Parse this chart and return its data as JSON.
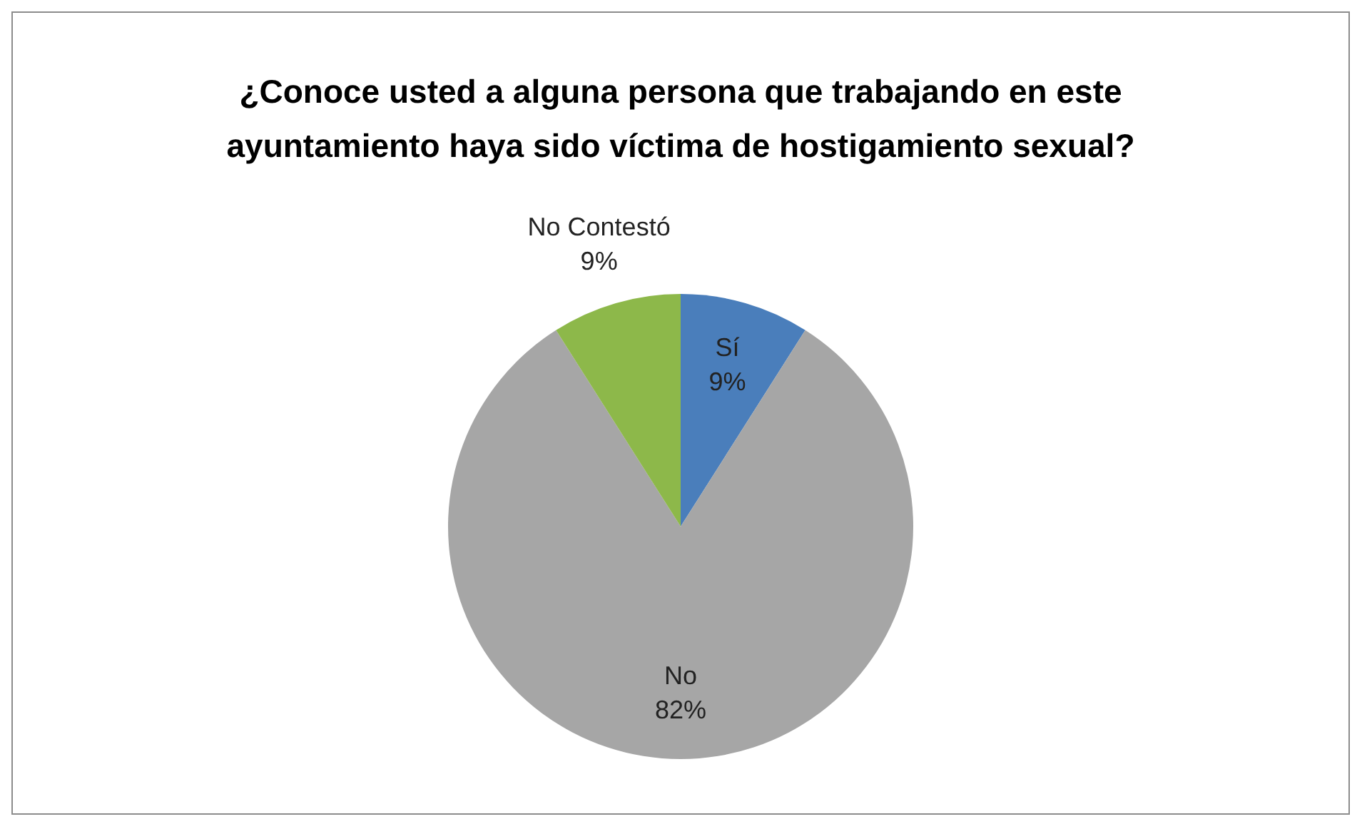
{
  "chart_data": {
    "type": "pie",
    "title": "¿Conoce usted a alguna persona que trabajando en este ayuntamiento haya sido víctima de hostigamiento sexual?",
    "categories": [
      "Sí",
      "No",
      "No Contestó"
    ],
    "values": [
      9,
      82,
      9
    ],
    "value_labels": [
      "9%",
      "82%",
      "9%"
    ],
    "colors": [
      "#4a7ebb",
      "#a6a6a6",
      "#8db84a"
    ],
    "legend": false
  }
}
